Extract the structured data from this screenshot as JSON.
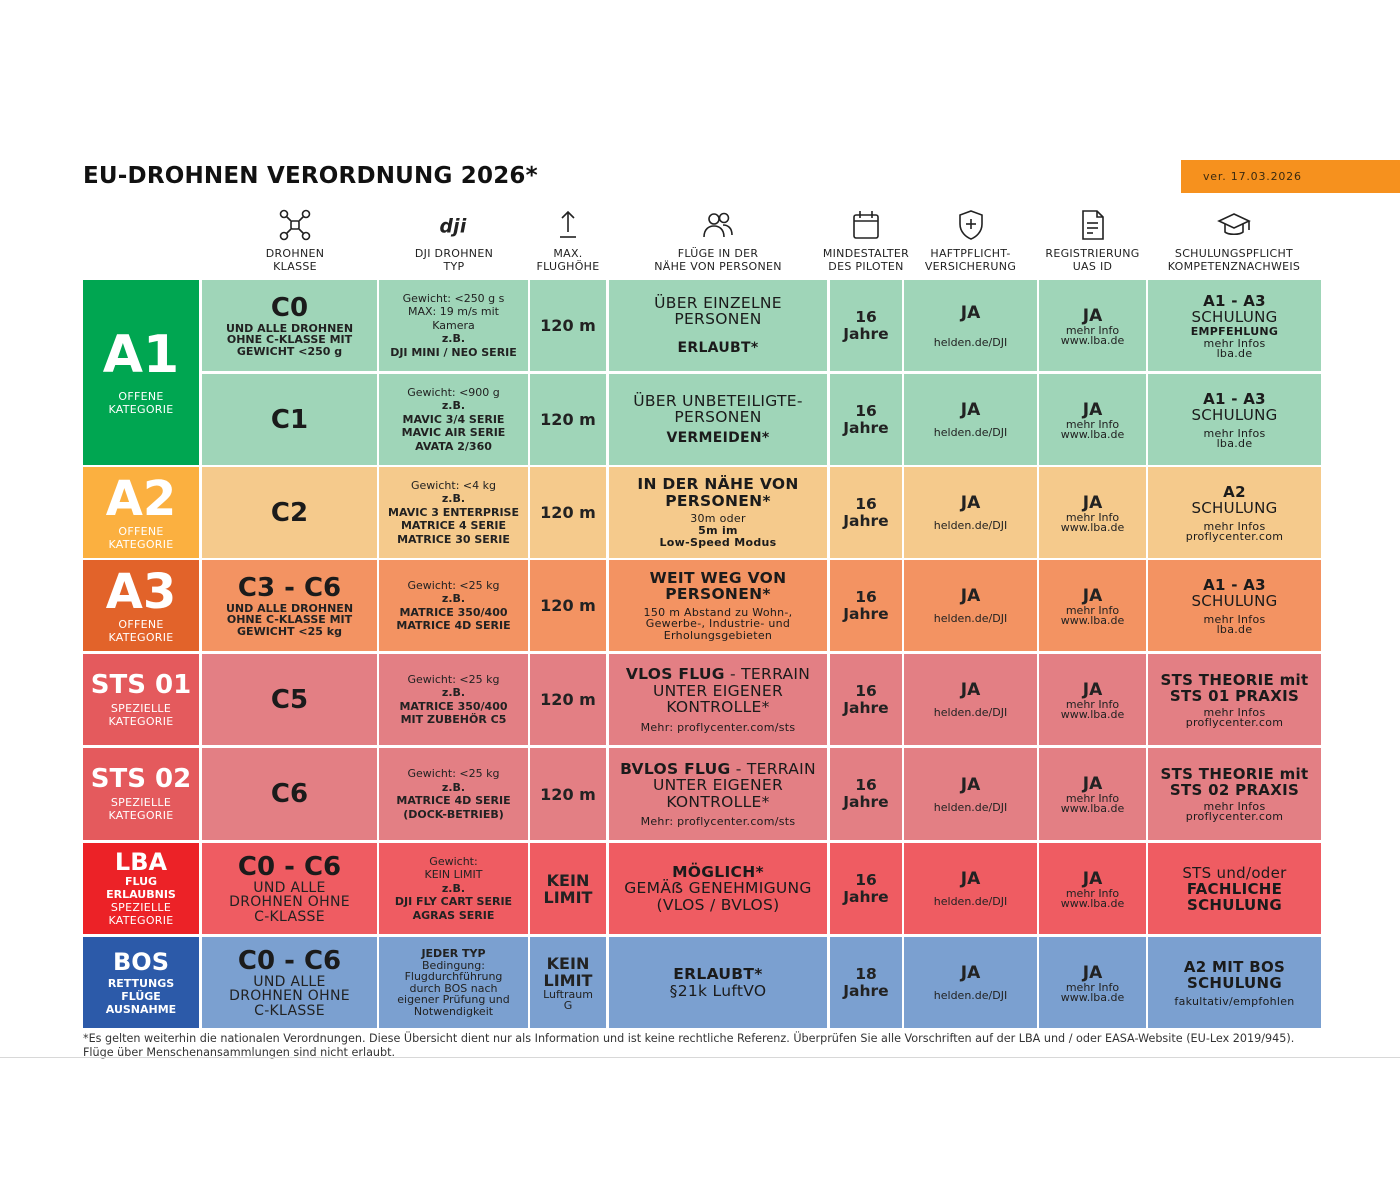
{
  "title": "EU-DROHNEN VERORDNUNG 2026*",
  "version": "ver. 17.03.2026",
  "colors": {
    "green_dark": "#00a651",
    "green": "#9fd5b8",
    "amber": "#fbb040",
    "amber_light": "#f5ca8c",
    "orange": "#e2632a",
    "orange_light": "#f39362",
    "red_dark": "#e45a5d",
    "red_light": "#e37f84",
    "red": "#ec2227",
    "red_mid": "#ef5c62",
    "blue": "#2c5aa9",
    "blue_light": "#7ba0d0"
  },
  "headers": [
    {
      "icon": "drone-icon",
      "label": "DROHNEN\nKLASSE"
    },
    {
      "icon": "dji-logo-icon",
      "label": "DJI DROHNEN\nTYP"
    },
    {
      "icon": "arrow-up-icon",
      "label": "MAX.\nFLUGHÖHE"
    },
    {
      "icon": "people-icon",
      "label": "FLÜGE IN DER\nNÄHE VON PERSONEN"
    },
    {
      "icon": "calendar-icon",
      "label": "MINDESTALTER\nDES PILOTEN"
    },
    {
      "icon": "shield-plus-icon",
      "label": "HAFTPFLICHT-\nVERSICHERUNG"
    },
    {
      "icon": "document-icon",
      "label": "REGISTRIERUNG\nUAS ID"
    },
    {
      "icon": "graduation-cap-icon",
      "label": "SCHULUNGSPFLICHT\nKOMPETENZNACHWEIS"
    }
  ],
  "categories": [
    {
      "name": "A1",
      "sub": "OFFENE\nKATEGORIE"
    },
    {
      "name": "A2",
      "sub": "OFFENE\nKATEGORIE"
    },
    {
      "name": "A3",
      "sub": "OFFENE\nKATEGORIE"
    },
    {
      "name": "STS 01",
      "sub": "SPEZIELLE\nKATEGORIE"
    },
    {
      "name": "STS 02",
      "sub": "SPEZIELLE\nKATEGORIE"
    },
    {
      "name": "LBA",
      "subb": "FLUG\nERLAUBNIS",
      "sub": "SPEZIELLE\nKATEGORIE"
    },
    {
      "name": "BOS",
      "subb": "RETTUNGS\nFLÜGE\nAUSNAHME"
    }
  ],
  "rows": [
    {
      "klasse": "C0",
      "klasse_note": "UND ALLE DROHNEN\nOHNE C-KLASSE MIT\nGEWICHT <250 g",
      "dji_plain": "Gewicht: <250 g s\nMAX: 19 m/s mit\nKamera",
      "dji_bold": "z.B.\nDJI MINI / NEO SERIE",
      "height": "120 m",
      "pers_main": "ÜBER EINZELNE\nPERSONEN",
      "pers_bold": "ERLAUBT*",
      "age": "16\nJahre",
      "ins": "JA",
      "ins_link": "helden.de/DJI",
      "reg": "JA",
      "reg_link": "mehr Info\nwww.lba.de",
      "sch_bold": "A1 - A3",
      "sch_main": "SCHULUNG",
      "sch_extra": "EMPFEHLUNG",
      "sch_link": "mehr Infos\nlba.de"
    },
    {
      "klasse": "C1",
      "dji_plain": "Gewicht: <900 g",
      "dji_bold": "z.B.\nMAVIC 3/4 SERIE\nMAVIC AIR SERIE\nAVATA 2/360",
      "height": "120 m",
      "pers_main": "ÜBER UNBETEILIGTE-\nPERSONEN",
      "pers_bold": "VERMEIDEN*",
      "age": "16\nJahre",
      "ins": "JA",
      "ins_link": "helden.de/DJI",
      "reg": "JA",
      "reg_link": "mehr Info\nwww.lba.de",
      "sch_bold": "A1 - A3",
      "sch_main": "SCHULUNG",
      "sch_link": "mehr Infos\nlba.de"
    },
    {
      "klasse": "C2",
      "dji_plain": "Gewicht: <4 kg",
      "dji_bold": "z.B.\nMAVIC 3 ENTERPRISE\nMATRICE 4 SERIE\nMATRICE 30 SERIE",
      "height": "120 m",
      "pers_title": "IN DER NÄHE VON\nPERSONEN*",
      "pers_small": "30m oder",
      "pers_smallb": "5m im\nLow-Speed Modus",
      "age": "16\nJahre",
      "ins": "JA",
      "ins_link": "helden.de/DJI",
      "reg": "JA",
      "reg_link": "mehr Info\nwww.lba.de",
      "sch_bold": "A2",
      "sch_main": "SCHULUNG",
      "sch_link": "mehr Infos\nproflycenter.com"
    },
    {
      "klasse": "C3 - C6",
      "klasse_note": "UND ALLE DROHNEN\nOHNE C-KLASSE MIT\nGEWICHT <25 kg",
      "dji_plain": "Gewicht: <25 kg",
      "dji_bold": "z.B.\nMATRICE 350/400\nMATRICE 4D SERIE",
      "height": "120 m",
      "pers_title": "WEIT WEG VON\nPERSONEN*",
      "pers_small": "150 m Abstand zu Wohn-,\nGewerbe-, Industrie- und\nErholungsgebieten",
      "age": "16\nJahre",
      "ins": "JA",
      "ins_link": "helden.de/DJI",
      "reg": "JA",
      "reg_link": "mehr Info\nwww.lba.de",
      "sch_bold": "A1 - A3",
      "sch_main": "SCHULUNG",
      "sch_link": "mehr Infos\nlba.de"
    },
    {
      "klasse": "C5",
      "dji_plain": "Gewicht: <25 kg",
      "dji_bold": "z.B.\nMATRICE 350/400\nMIT ZUBEHÖR C5",
      "height": "120 m",
      "pers_title": "VLOS FLUG",
      "pers_rest": " - TERRAIN",
      "pers_main": "UNTER EIGENER\nKONTROLLE*",
      "pers_small": "Mehr: proflycenter.com/sts",
      "age": "16\nJahre",
      "ins": "JA",
      "ins_link": "helden.de/DJI",
      "reg": "JA",
      "reg_link": "mehr Info\nwww.lba.de",
      "sch_bold": "STS THEORIE mit\nSTS 01 PRAXIS",
      "sch_link": "mehr Infos\nproflycenter.com"
    },
    {
      "klasse": "C6",
      "dji_plain": "Gewicht: <25 kg",
      "dji_bold": "z.B.\nMATRICE 4D SERIE\n(DOCK-BETRIEB)",
      "height": "120 m",
      "pers_title": "BVLOS FLUG",
      "pers_rest": " - TERRAIN",
      "pers_main": "UNTER EIGENER\nKONTROLLE*",
      "pers_small": "Mehr: proflycenter.com/sts",
      "age": "16\nJahre",
      "ins": "JA",
      "ins_link": "helden.de/DJI",
      "reg": "JA",
      "reg_link": "mehr Info\nwww.lba.de",
      "sch_bold": "STS THEORIE mit\nSTS 02 PRAXIS",
      "sch_link": "mehr Infos\nproflycenter.com"
    },
    {
      "klasse": "C0 - C6",
      "klasse_mid": "UND ALLE\nDROHNEN OHNE\nC-KLASSE",
      "dji_plain": "Gewicht:\nKEIN LIMIT",
      "dji_bold": "z.B.\nDJI FLY CART SERIE\nAGRAS SERIE",
      "height": "KEIN\nLIMIT",
      "pers_title": "MÖGLICH*",
      "pers_main": "GEMÄẞ GENEHMIGUNG\n(VLOS / BVLOS)",
      "age": "16\nJahre",
      "ins": "JA",
      "ins_link": "helden.de/DJI",
      "reg": "JA",
      "reg_link": "mehr Info\nwww.lba.de",
      "sch_main": "STS und/oder",
      "sch_bold": "FACHLICHE\nSCHULUNG"
    },
    {
      "klasse": "C0 - C6",
      "klasse_mid": "UND ALLE\nDROHNEN OHNE\nC-KLASSE",
      "dji_bold": "JEDER TYP",
      "dji_plain": "Bedingung:\nFlugdurchführung\ndurch BOS nach\neigener Prüfung und\nNotwendigkeit",
      "height": "KEIN\nLIMIT",
      "height_note": "Luftraum\nG",
      "pers_title": "ERLAUBT*",
      "pers_main": "§21k LuftVO",
      "age": "18\nJahre",
      "ins": "JA",
      "ins_link": "helden.de/DJI",
      "reg": "JA",
      "reg_link": "mehr Info\nwww.lba.de",
      "sch_bold": "A2 MIT BOS\nSCHULUNG",
      "sch_link": "fakultativ/empfohlen"
    }
  ],
  "footnote": "*Es gelten weiterhin die nationalen Verordnungen. Diese Übersicht dient nur als Information und ist keine rechtliche Referenz. Überprüfen Sie alle Vorschriften auf der LBA und / oder EASA-Website (EU-Lex 2019/945).\nFlüge über Menschenansammlungen sind nicht erlaubt."
}
